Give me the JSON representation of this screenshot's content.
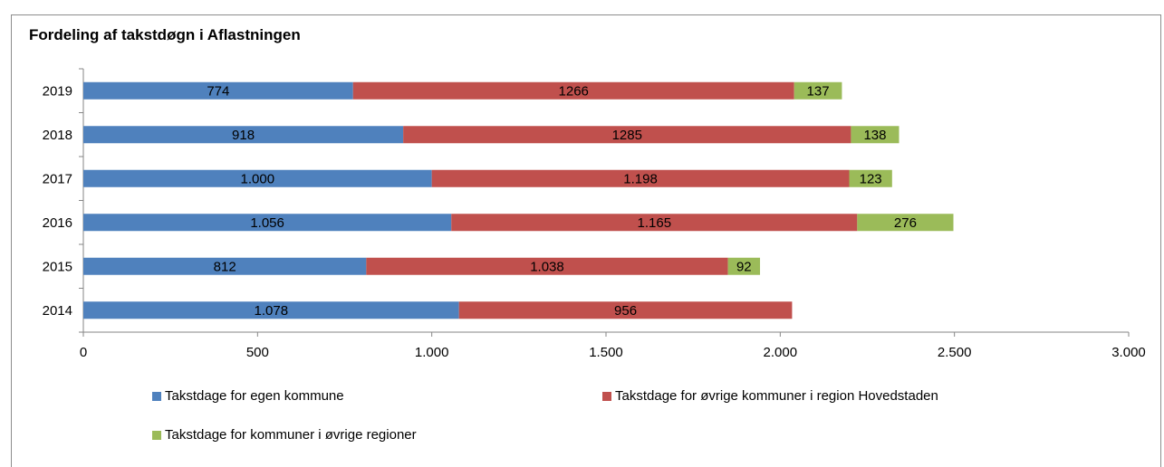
{
  "chart_data": {
    "type": "bar",
    "orientation": "horizontal",
    "stacked": true,
    "title": "Fordeling af takstdøgn i Aflastningen",
    "categories": [
      "2019",
      "2018",
      "2017",
      "2016",
      "2015",
      "2014"
    ],
    "series": [
      {
        "name": "Takstdage for egen kommune",
        "color": "#4f81bd",
        "values": [
          774,
          918,
          1000,
          1056,
          812,
          1078
        ],
        "labels": [
          "774",
          "918",
          "1.000",
          "1.056",
          "812",
          "1.078"
        ]
      },
      {
        "name": "Takstdage for øvrige kommuner i region Hovedstaden",
        "color": "#c0504d",
        "values": [
          1266,
          1285,
          1198,
          1165,
          1038,
          956
        ],
        "labels": [
          "1266",
          "1285",
          "1.198",
          "1.165",
          "1.038",
          "956"
        ]
      },
      {
        "name": "Takstdage for kommuner i øvrige regioner",
        "color": "#9bbb59",
        "values": [
          137,
          138,
          123,
          276,
          92,
          0
        ],
        "labels": [
          "137",
          "138",
          "123",
          "276",
          "92",
          ""
        ]
      }
    ],
    "xlim": [
      0,
      3000
    ],
    "xticks": [
      0,
      500,
      1000,
      1500,
      2000,
      2500,
      3000
    ],
    "xtick_labels": [
      "0",
      "500",
      "1.000",
      "1.500",
      "2.000",
      "2.500",
      "3.000"
    ],
    "grid": false,
    "legend_position": "bottom"
  }
}
